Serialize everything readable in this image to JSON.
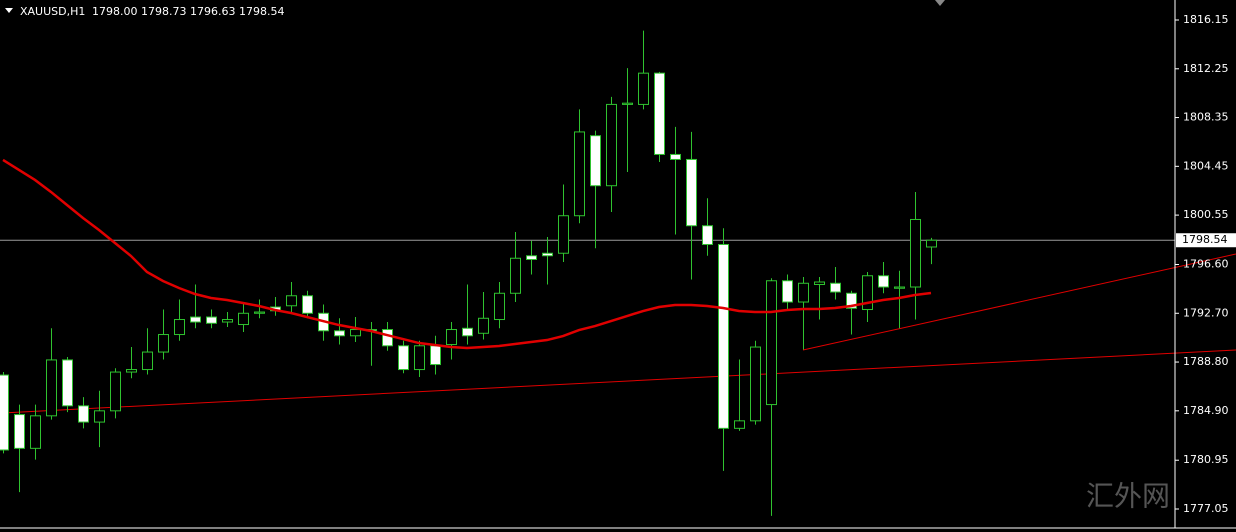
{
  "chart_data": {
    "type": "candlestick",
    "symbol": "XAUUSD,H1",
    "ohlc_text": "1798.00 1798.73 1796.63 1798.54",
    "watermark": "汇外网",
    "ylim": [
      1775.53,
      1817.75
    ],
    "yticks": [
      1816.15,
      1812.25,
      1808.35,
      1804.45,
      1800.55,
      {
        "value": 1796.6,
        "label": "1796.60"
      },
      {
        "value": 1792.7,
        "label": "1792.70"
      },
      {
        "value": 1788.8,
        "label": "1788.80"
      },
      {
        "value": 1784.9,
        "label": "1784.90"
      },
      1780.95,
      1777.05
    ],
    "current_price": 1798.54,
    "wick_color": "#2fc32f",
    "up_fill": "#000000",
    "down_fill": "#ffffff",
    "open": [
      1787.76,
      1784.6,
      1781.9,
      1784.5,
      1788.97,
      1785.3,
      1784.0,
      1784.9,
      1788.0,
      1788.2,
      1789.6,
      1791.0,
      1792.4,
      1792.4,
      1792.0,
      1791.8,
      1792.7,
      1793.2,
      1793.3,
      1794.1,
      1792.7,
      1791.3,
      1790.9,
      1791.4,
      1791.4,
      1790.1,
      1788.2,
      1790.1,
      1790.2,
      1791.5,
      1791.1,
      1792.2,
      1794.3,
      1797.3,
      1797.5,
      1797.5,
      1800.5,
      1806.9,
      1802.9,
      1809.4,
      1809.4,
      1811.9,
      1805.4,
      1805.0,
      1799.7,
      1798.2,
      1783.5,
      1784.1,
      1785.4,
      1795.3,
      1793.6,
      1795.0,
      1795.1,
      1794.3,
      1793.0,
      1795.7,
      1794.7,
      1794.8,
      1798.0
    ],
    "high": [
      1788.0,
      1785.4,
      1785.4,
      1791.5,
      1789.2,
      1786.0,
      1786.5,
      1788.3,
      1790.0,
      1791.5,
      1793.0,
      1793.8,
      1795.0,
      1793.0,
      1792.8,
      1793.5,
      1793.8,
      1794.0,
      1795.2,
      1794.5,
      1793.4,
      1792.3,
      1792.4,
      1792.0,
      1792.0,
      1790.5,
      1790.5,
      1790.9,
      1792.0,
      1795.0,
      1794.4,
      1795.2,
      1799.2,
      1798.5,
      1798.8,
      1803.0,
      1809.0,
      1807.3,
      1810.0,
      1812.3,
      1815.3,
      1812.0,
      1807.6,
      1807.2,
      1801.9,
      1799.5,
      1789.0,
      1790.5,
      1795.5,
      1795.8,
      1795.6,
      1795.6,
      1796.4,
      1794.5,
      1796.0,
      1796.8,
      1796.1,
      1802.4,
      1798.73
    ],
    "low": [
      1781.5,
      1778.4,
      1781.0,
      1784.2,
      1784.8,
      1783.5,
      1782.0,
      1784.3,
      1787.5,
      1787.8,
      1789.0,
      1790.5,
      1791.5,
      1791.5,
      1791.6,
      1791.2,
      1792.3,
      1792.5,
      1792.8,
      1792.3,
      1790.5,
      1790.2,
      1790.4,
      1788.5,
      1789.7,
      1787.9,
      1787.6,
      1787.8,
      1789.0,
      1790.2,
      1790.6,
      1791.5,
      1793.6,
      1795.8,
      1795.0,
      1796.8,
      1799.9,
      1797.9,
      1800.8,
      1804.0,
      1809.0,
      1804.8,
      1799.0,
      1795.4,
      1797.3,
      1780.1,
      1783.3,
      1783.8,
      1776.5,
      1793.0,
      1789.8,
      1792.2,
      1793.8,
      1791.0,
      1792.0,
      1794.3,
      1791.5,
      1792.2,
      1796.63
    ],
    "close": [
      1781.77,
      1781.9,
      1784.5,
      1788.97,
      1785.3,
      1784.0,
      1784.9,
      1788.0,
      1788.2,
      1789.6,
      1791.0,
      1792.2,
      1792.0,
      1791.9,
      1792.2,
      1792.7,
      1792.8,
      1792.9,
      1794.1,
      1792.7,
      1791.3,
      1790.9,
      1791.4,
      1791.3,
      1790.1,
      1788.2,
      1790.1,
      1788.6,
      1791.4,
      1790.9,
      1792.3,
      1794.3,
      1797.1,
      1797.0,
      1797.3,
      1800.5,
      1807.2,
      1802.9,
      1809.4,
      1809.5,
      1811.9,
      1805.4,
      1805.0,
      1799.7,
      1798.2,
      1783.5,
      1784.1,
      1790.0,
      1795.3,
      1793.6,
      1795.1,
      1795.2,
      1794.4,
      1793.1,
      1795.7,
      1794.8,
      1794.8,
      1800.2,
      1798.54
    ],
    "moving_average": {
      "color": "#e00000",
      "values": [
        1804.96,
        1804.16,
        1803.36,
        1802.4,
        1801.36,
        1800.32,
        1799.36,
        1798.32,
        1797.28,
        1796.0,
        1795.28,
        1794.72,
        1794.24,
        1793.92,
        1793.76,
        1793.52,
        1793.28,
        1792.96,
        1792.72,
        1792.4,
        1792.08,
        1791.76,
        1791.52,
        1791.28,
        1790.96,
        1790.64,
        1790.32,
        1790.16,
        1790.0,
        1789.92,
        1790.0,
        1790.08,
        1790.24,
        1790.4,
        1790.56,
        1790.88,
        1791.36,
        1791.68,
        1792.08,
        1792.48,
        1792.88,
        1793.2,
        1793.36,
        1793.36,
        1793.28,
        1793.12,
        1792.88,
        1792.8,
        1792.8,
        1792.96,
        1793.04,
        1793.04,
        1793.12,
        1793.28,
        1793.52,
        1793.76,
        1793.92,
        1794.16,
        1794.32
      ]
    },
    "trendlines": {
      "color": "#e00000",
      "lines": [
        {
          "x": [
            -0.19,
            77.06
          ],
          "y": [
            1784.72,
            1789.76
          ]
        },
        {
          "x": [
            50,
            77.06
          ],
          "y": [
            1789.76,
            1797.44
          ]
        }
      ]
    }
  }
}
